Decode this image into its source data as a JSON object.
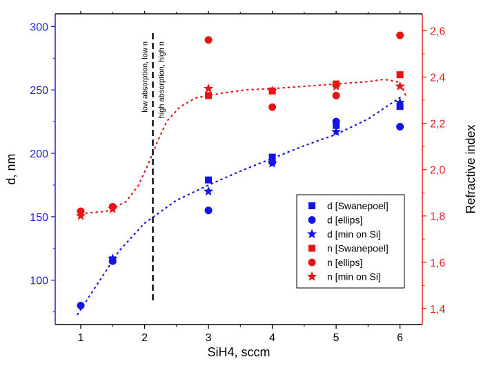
{
  "chart_data": {
    "type": "scatter",
    "xlabel": "SiH4, sccm",
    "ylabel_left": "d, nm",
    "ylabel_right": "Refractive index",
    "xlim": [
      0.6,
      6.35
    ],
    "xticks": [
      1,
      2,
      3,
      4,
      5,
      6
    ],
    "ylim_left": [
      65,
      310
    ],
    "yticks_left": [
      100,
      150,
      200,
      250,
      300
    ],
    "ylim_right": [
      1.331,
      2.673
    ],
    "yticks_right": [
      "1,4",
      "1,6",
      "1,8",
      "2,0",
      "2,2",
      "2,4",
      "2,6"
    ],
    "ytick_values_right": [
      1.4,
      1.6,
      1.8,
      2.0,
      2.2,
      2.4,
      2.6
    ],
    "grid": false,
    "legend_position": "bottom-right",
    "colors": {
      "d_axis": "#1f1fe6",
      "n_axis": "#e61f1f",
      "blue": "#1414e6",
      "red": "#e61414"
    },
    "annotations": {
      "vline_x": 2.13,
      "left_text": "low absorption, low n",
      "right_text": "high absorption, high n"
    },
    "series": [
      {
        "name": "d [Swanepoel]",
        "axis": "left",
        "marker": "square",
        "color": "blue",
        "x": [
          1.5,
          3,
          4,
          5,
          6
        ],
        "y": [
          116,
          179,
          197,
          222,
          237
        ]
      },
      {
        "name": "d [ellips]",
        "axis": "left",
        "marker": "circle",
        "color": "blue",
        "x": [
          1,
          1.5,
          3,
          4,
          5,
          6
        ],
        "y": [
          80,
          115,
          155,
          193,
          225,
          221
        ]
      },
      {
        "name": "d [min on Si]",
        "axis": "left",
        "marker": "star",
        "color": "blue",
        "x": [
          1.5,
          3,
          4,
          5,
          6
        ],
        "y": [
          117,
          170,
          192,
          217,
          240
        ]
      },
      {
        "name": "n [Swanepoel]",
        "axis": "right",
        "marker": "square",
        "color": "red",
        "x": [
          3,
          4,
          5,
          6
        ],
        "y": [
          2.32,
          2.34,
          2.37,
          2.41
        ]
      },
      {
        "name": "n [ellips]",
        "axis": "right",
        "marker": "circle",
        "color": "red",
        "x": [
          1,
          1.5,
          3,
          4,
          5,
          6
        ],
        "y": [
          1.82,
          1.84,
          2.56,
          2.27,
          2.32,
          2.58
        ]
      },
      {
        "name": "n [min on Si]",
        "axis": "right",
        "marker": "star",
        "color": "red",
        "x": [
          1,
          1.5,
          3,
          4,
          5,
          6
        ],
        "y": [
          1.8,
          1.83,
          2.35,
          2.34,
          2.36,
          2.36
        ]
      }
    ]
  }
}
